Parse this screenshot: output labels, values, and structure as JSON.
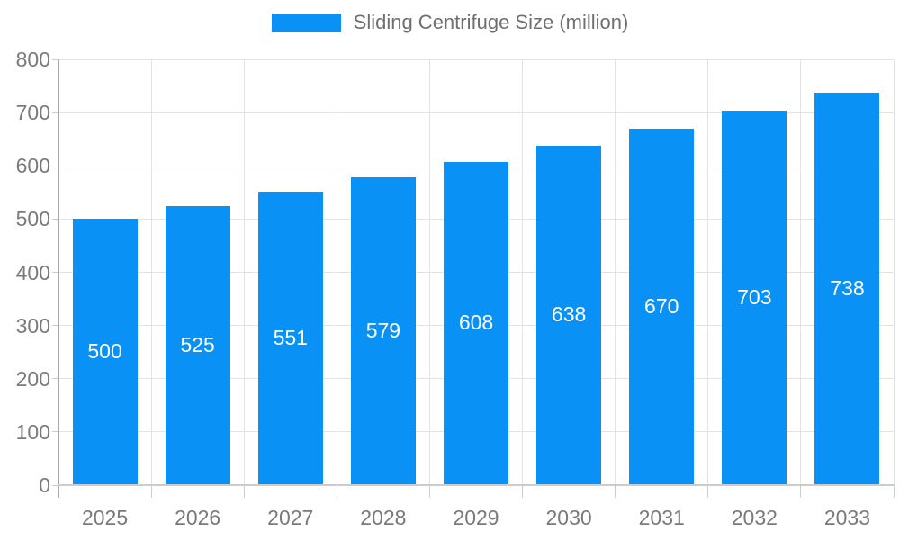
{
  "chart_data": {
    "type": "bar",
    "title": "Sliding Centrifuge Size (million)",
    "legend_entries": [
      "Sliding Centrifuge Size (million)"
    ],
    "legend_position": "top-center",
    "categories": [
      "2025",
      "2026",
      "2027",
      "2028",
      "2029",
      "2030",
      "2031",
      "2032",
      "2033"
    ],
    "series": [
      {
        "name": "Sliding Centrifuge Size (million)",
        "values": [
          500,
          525,
          551,
          579,
          608,
          638,
          670,
          703,
          738
        ]
      }
    ],
    "bar_value_labels": [
      "500",
      "525",
      "551",
      "579",
      "608",
      "638",
      "670",
      "703",
      "738"
    ],
    "y_tick_labels": [
      "0",
      "100",
      "200",
      "300",
      "400",
      "500",
      "600",
      "700",
      "800"
    ],
    "xlabel": "",
    "ylabel": "",
    "ylim": [
      0,
      800
    ],
    "y_tick_step": 100,
    "grid": true,
    "colors": {
      "bar": "#0a91f5",
      "bar_label_text": "#ffffff",
      "grid_line": "#e3e3e3",
      "y_axis_line": "#aaaaaa",
      "x_axis_line": "#cccccc",
      "tick_mark": "#cccccc",
      "axis_text": "#7a7a7a",
      "legend_text": "#6f6f6f",
      "background": "#ffffff"
    }
  }
}
